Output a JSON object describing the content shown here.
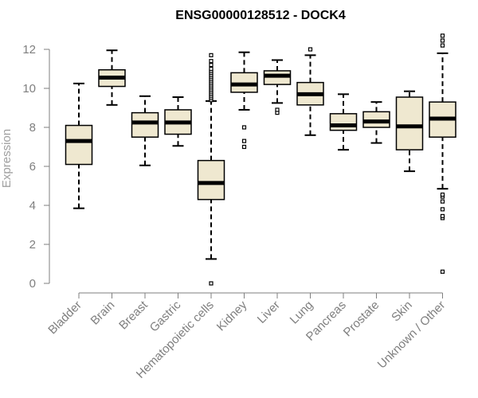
{
  "chart_data": {
    "type": "box",
    "title": "ENSG00000128512 - DOCK4",
    "xlabel": "",
    "ylabel": "Expression",
    "ylim": [
      0,
      12.5
    ],
    "yticks": [
      0,
      2,
      4,
      6,
      8,
      10,
      12
    ],
    "ytick_labels": [
      "0",
      "2",
      "4",
      "6",
      "8",
      "10",
      "12"
    ],
    "grid": false,
    "legend": "none",
    "colors": {
      "box_fill": "#efe8d0",
      "box_stroke": "#000000",
      "axis": "#7f7f7f",
      "tick_label": "#7f7f7f",
      "axis_title": "#a0a0a0",
      "title": "#000000"
    },
    "categories": [
      "Bladder",
      "Brain",
      "Breast",
      "Gastric",
      "Hematopoietic cells",
      "Kidney",
      "Liver",
      "Lung",
      "Pancreas",
      "Prostate",
      "Skin",
      "Unknown / Other"
    ],
    "boxes": [
      {
        "category": "Bladder",
        "whisker_low": 3.85,
        "q1": 6.1,
        "median": 7.3,
        "q3": 8.1,
        "whisker_high": 10.25,
        "outliers": []
      },
      {
        "category": "Brain",
        "whisker_low": 9.15,
        "q1": 10.1,
        "median": 10.55,
        "q3": 10.95,
        "whisker_high": 11.95,
        "outliers": []
      },
      {
        "category": "Breast",
        "whisker_low": 6.05,
        "q1": 7.5,
        "median": 8.25,
        "q3": 8.75,
        "whisker_high": 9.6,
        "outliers": []
      },
      {
        "category": "Gastric",
        "whisker_low": 7.05,
        "q1": 7.65,
        "median": 8.25,
        "q3": 8.9,
        "whisker_high": 9.55,
        "outliers": []
      },
      {
        "category": "Hematopoietic cells",
        "whisker_low": 1.25,
        "q1": 4.3,
        "median": 5.15,
        "q3": 6.3,
        "whisker_high": 9.35,
        "outliers": [
          0.0,
          9.4,
          9.5,
          9.6,
          9.7,
          9.8,
          9.9,
          10.0,
          10.1,
          10.2,
          10.3,
          10.4,
          10.5,
          10.6,
          10.7,
          10.8,
          10.9,
          11.0,
          11.2,
          11.4,
          11.7
        ]
      },
      {
        "category": "Kidney",
        "whisker_low": 8.9,
        "q1": 9.8,
        "median": 10.2,
        "q3": 10.8,
        "whisker_high": 11.85,
        "outliers": [
          7.0,
          7.3,
          8.0
        ]
      },
      {
        "category": "Liver",
        "whisker_low": 9.25,
        "q1": 10.2,
        "median": 10.65,
        "q3": 10.9,
        "whisker_high": 11.45,
        "outliers": [
          8.75,
          8.9
        ]
      },
      {
        "category": "Lung",
        "whisker_low": 7.6,
        "q1": 9.15,
        "median": 9.7,
        "q3": 10.3,
        "whisker_high": 11.7,
        "outliers": [
          12.0
        ]
      },
      {
        "category": "Pancreas",
        "whisker_low": 6.85,
        "q1": 7.85,
        "median": 8.1,
        "q3": 8.7,
        "whisker_high": 9.7,
        "outliers": []
      },
      {
        "category": "Prostate",
        "whisker_low": 7.2,
        "q1": 8.0,
        "median": 8.3,
        "q3": 8.8,
        "whisker_high": 9.3,
        "outliers": []
      },
      {
        "category": "Skin",
        "whisker_low": 5.75,
        "q1": 6.85,
        "median": 8.05,
        "q3": 9.55,
        "whisker_high": 9.85,
        "outliers": []
      },
      {
        "category": "Unknown / Other",
        "whisker_low": 4.85,
        "q1": 7.5,
        "median": 8.45,
        "q3": 9.3,
        "whisker_high": 11.8,
        "outliers": [
          0.6,
          3.35,
          3.45,
          3.8,
          4.2,
          4.45,
          4.55,
          12.2,
          12.45,
          12.7
        ]
      }
    ]
  }
}
